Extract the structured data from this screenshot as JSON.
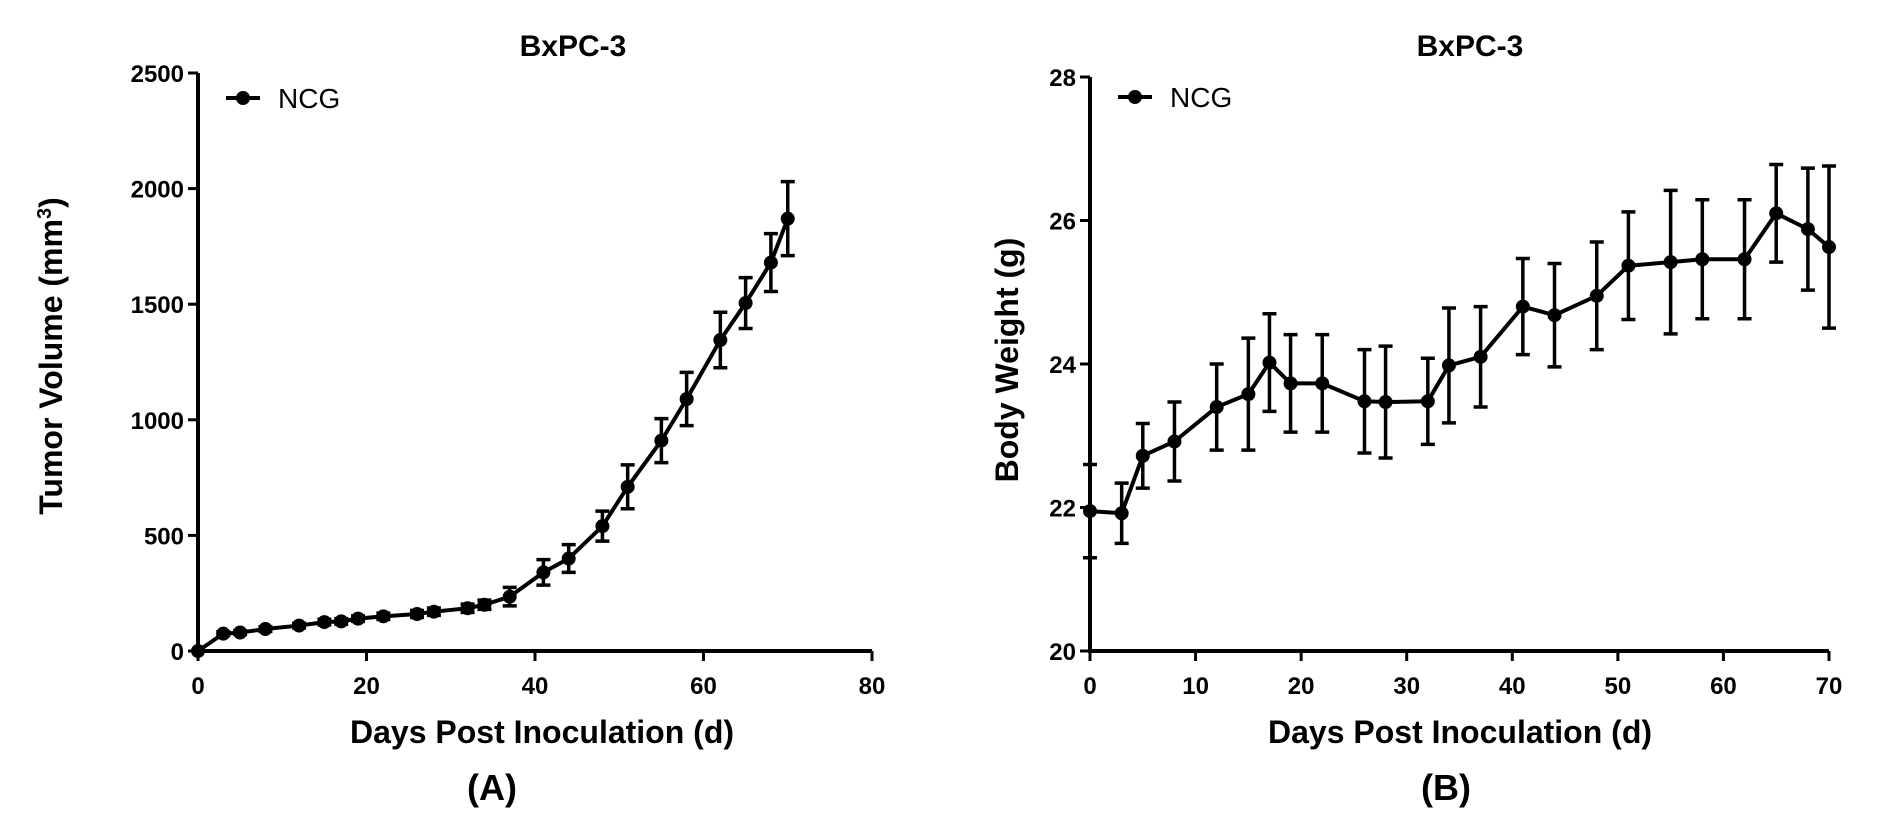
{
  "chart_data": [
    {
      "type": "line",
      "panel_label": "(A)",
      "title": "BxPC-3",
      "xlabel": "Days Post Inoculation (d)",
      "ylabel": "Tumor Volume (mm",
      "ylabel_sup": "3",
      "ylabel_end": ")",
      "xlim": [
        0,
        80
      ],
      "ylim": [
        0,
        2500
      ],
      "xticks": [
        0,
        20,
        40,
        60,
        80
      ],
      "yticks": [
        0,
        500,
        1000,
        1500,
        2000,
        2500
      ],
      "grid": false,
      "legend": "top-left",
      "series": [
        {
          "name": "NCG",
          "color": "#000000",
          "x": [
            0,
            3,
            5,
            8,
            12,
            15,
            17,
            19,
            22,
            26,
            28,
            32,
            34,
            37,
            41,
            44,
            48,
            51,
            55,
            58,
            62,
            65,
            68,
            70
          ],
          "y": [
            0,
            75,
            80,
            95,
            110,
            125,
            128,
            140,
            150,
            160,
            170,
            185,
            200,
            235,
            340,
            400,
            540,
            710,
            910,
            1090,
            1345,
            1505,
            1680,
            1870
          ],
          "error": [
            0,
            8,
            8,
            10,
            10,
            12,
            12,
            12,
            14,
            15,
            16,
            18,
            20,
            40,
            55,
            60,
            65,
            95,
            95,
            115,
            120,
            110,
            125,
            160
          ]
        }
      ]
    },
    {
      "type": "line",
      "panel_label": "(B)",
      "title": "BxPC-3",
      "xlabel": "Days Post Inoculation (d)",
      "ylabel": "Body Weight (g)",
      "xlim": [
        0,
        70
      ],
      "ylim": [
        20,
        28
      ],
      "xticks": [
        0,
        10,
        20,
        30,
        40,
        50,
        60,
        70
      ],
      "yticks": [
        20,
        22,
        24,
        26,
        28
      ],
      "grid": false,
      "legend": "top-left",
      "series": [
        {
          "name": "NCG",
          "color": "#000000",
          "x": [
            0,
            3,
            5,
            8,
            12,
            15,
            17,
            19,
            22,
            26,
            28,
            32,
            34,
            37,
            41,
            44,
            48,
            51,
            55,
            58,
            62,
            65,
            68,
            70
          ],
          "y": [
            21.95,
            21.92,
            22.72,
            22.92,
            23.4,
            23.58,
            24.02,
            23.73,
            23.73,
            23.48,
            23.47,
            23.48,
            23.98,
            24.1,
            24.8,
            24.68,
            24.95,
            25.37,
            25.42,
            25.46,
            25.46,
            26.1,
            25.88,
            25.63
          ],
          "error": [
            0.65,
            0.42,
            0.45,
            0.55,
            0.6,
            0.78,
            0.68,
            0.68,
            0.68,
            0.72,
            0.78,
            0.6,
            0.8,
            0.7,
            0.67,
            0.72,
            0.75,
            0.75,
            1.0,
            0.83,
            0.83,
            0.68,
            0.85,
            1.13
          ]
        }
      ]
    }
  ]
}
